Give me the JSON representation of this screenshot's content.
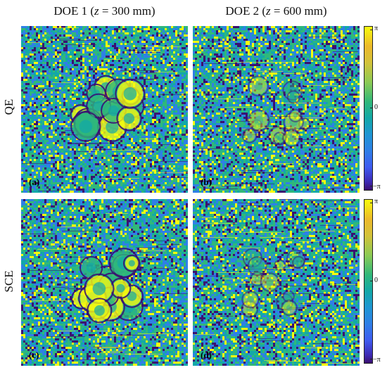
{
  "columns": [
    {
      "prefix": "DOE 1 (",
      "var": "z",
      "suffix": " = 300 mm)"
    },
    {
      "prefix": "DOE 2 (",
      "var": "z",
      "suffix": " = 600 mm)"
    }
  ],
  "rows": [
    "QE",
    "SCE"
  ],
  "panels": [
    {
      "tag": "(a)",
      "pattern": "strong-central-cluster"
    },
    {
      "tag": "(b)",
      "pattern": "faint-central-cluster"
    },
    {
      "tag": "(c)",
      "pattern": "strong-central-cluster"
    },
    {
      "tag": "(d)",
      "pattern": "faint-central-cluster"
    }
  ],
  "colorbar": {
    "ticks": [
      "π",
      "0",
      "−π"
    ],
    "colormap": "parula"
  },
  "colors": {
    "dark_blue": "#3b0f70",
    "blue": "#2f7fe6",
    "teal": "#13a8a8",
    "green": "#30b87a",
    "yellow": "#f9fb0e"
  }
}
